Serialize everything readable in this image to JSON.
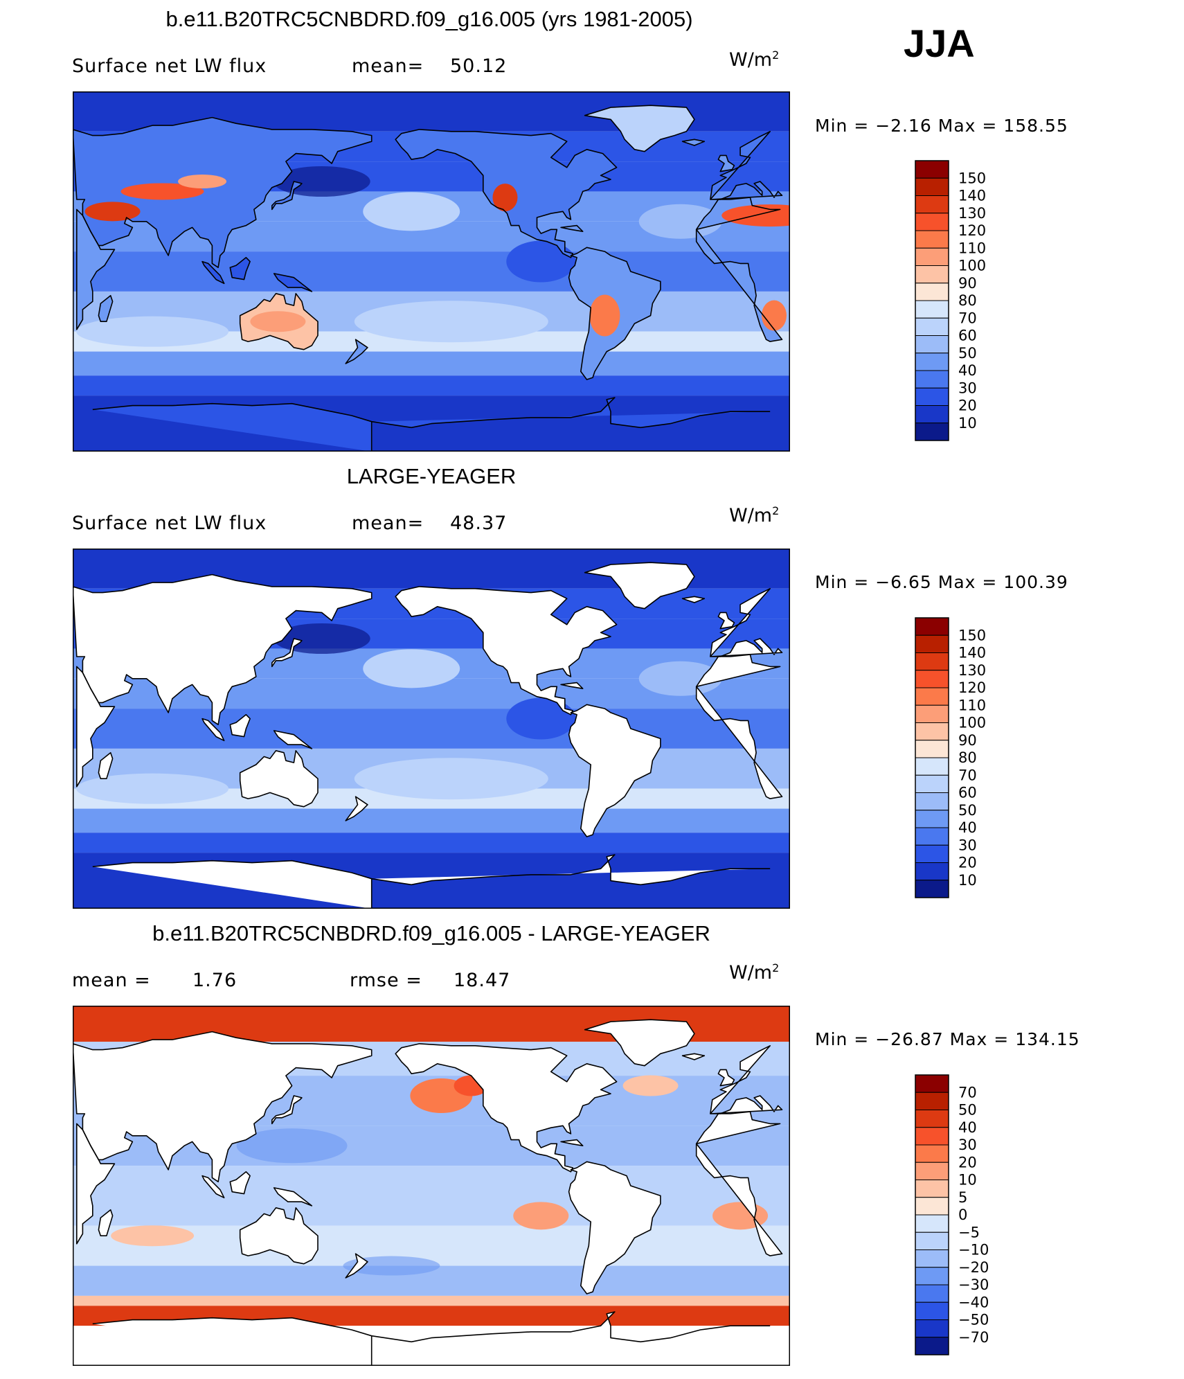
{
  "season": "JJA",
  "panels": [
    {
      "title": "b.e11.B20TRC5CNBDRD.f09_g16.005 (yrs 1981-2005)",
      "left_label": "Surface net LW flux",
      "mean_label": "mean=",
      "mean_value": "50.12",
      "units": "W/m",
      "units_exp": "2",
      "min_max": "Min =   −2.16 Max = 158.55",
      "palette": "full",
      "ocean_only": false,
      "colorbar_levels": [
        "150",
        "140",
        "130",
        "120",
        "110",
        "100",
        "90",
        "80",
        "70",
        "60",
        "50",
        "40",
        "30",
        "20",
        "10"
      ],
      "colorbar_colors": [
        "#8b0000",
        "#b82000",
        "#dd3a12",
        "#f7522b",
        "#fb7a4a",
        "#fc9e78",
        "#fdc3a6",
        "#fce6d6",
        "#d6e6fb",
        "#bbd3fb",
        "#9cbcf8",
        "#6e9af4",
        "#4a78ef",
        "#2c55e6",
        "#1937c8",
        "#0b1a8a"
      ],
      "chart_data": {
        "type": "heatmap",
        "title": "b.e11.B20TRC5CNBDRD.f09_g16.005 (yrs 1981-2005)",
        "variable": "Surface net LW flux",
        "units": "W/m2",
        "mean": 50.12,
        "min": -2.16,
        "max": 158.55,
        "levels": [
          10,
          20,
          30,
          40,
          50,
          60,
          70,
          80,
          90,
          100,
          110,
          120,
          130,
          140,
          150
        ]
      }
    },
    {
      "title": "LARGE-YEAGER",
      "left_label": "Surface net LW flux",
      "mean_label": "mean=",
      "mean_value": "48.37",
      "units": "W/m",
      "units_exp": "2",
      "min_max": "Min =   −6.65 Max = 100.39",
      "palette": "full",
      "ocean_only": true,
      "colorbar_levels": [
        "150",
        "140",
        "130",
        "120",
        "110",
        "100",
        "90",
        "80",
        "70",
        "60",
        "50",
        "40",
        "30",
        "20",
        "10"
      ],
      "colorbar_colors": [
        "#8b0000",
        "#b82000",
        "#dd3a12",
        "#f7522b",
        "#fb7a4a",
        "#fc9e78",
        "#fdc3a6",
        "#fce6d6",
        "#d6e6fb",
        "#bbd3fb",
        "#9cbcf8",
        "#6e9af4",
        "#4a78ef",
        "#2c55e6",
        "#1937c8",
        "#0b1a8a"
      ],
      "chart_data": {
        "type": "heatmap",
        "title": "LARGE-YEAGER",
        "variable": "Surface net LW flux",
        "units": "W/m2",
        "mean": 48.37,
        "min": -6.65,
        "max": 100.39,
        "levels": [
          10,
          20,
          30,
          40,
          50,
          60,
          70,
          80,
          90,
          100,
          110,
          120,
          130,
          140,
          150
        ]
      }
    },
    {
      "title": "b.e11.B20TRC5CNBDRD.f09_g16.005 - LARGE-YEAGER",
      "left_label": "mean =",
      "mean_label": "rmse =",
      "left_value": "1.76",
      "mean_value": "18.47",
      "units": "W/m",
      "units_exp": "2",
      "min_max": "Min = −26.87 Max = 134.15",
      "palette": "diff",
      "ocean_only": true,
      "colorbar_levels": [
        "70",
        "50",
        "40",
        "30",
        "20",
        "10",
        "5",
        "0",
        "−5",
        "−10",
        "−20",
        "−30",
        "−40",
        "−50",
        "−70"
      ],
      "colorbar_colors": [
        "#8b0000",
        "#b82000",
        "#dd3a12",
        "#f7522b",
        "#fb7a4a",
        "#fc9e78",
        "#fdc3a6",
        "#fce6d6",
        "#d6e6fb",
        "#bbd3fb",
        "#9cbcf8",
        "#6e9af4",
        "#4a78ef",
        "#2c55e6",
        "#1937c8",
        "#0b1a8a"
      ],
      "chart_data": {
        "type": "heatmap",
        "title": "b.e11.B20TRC5CNBDRD.f09_g16.005 - LARGE-YEAGER",
        "mean": 1.76,
        "rmse": 18.47,
        "units": "W/m2",
        "min": -26.87,
        "max": 134.15,
        "levels": [
          -70,
          -50,
          -40,
          -30,
          -20,
          -10,
          -5,
          0,
          5,
          10,
          20,
          30,
          40,
          50,
          70
        ]
      }
    }
  ]
}
